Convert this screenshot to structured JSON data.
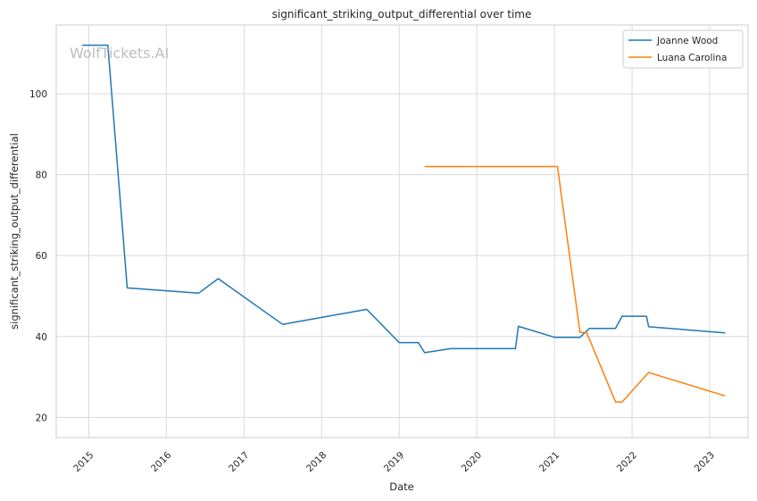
{
  "chart_data": {
    "type": "line",
    "title": "significant_striking_output_differential over time",
    "xlabel": "Date",
    "ylabel": "significant_striking_output_differential",
    "x_range": [
      "2014-08-01",
      "2023-07-01"
    ],
    "ylim": [
      15,
      117
    ],
    "x_ticks": [
      "2015",
      "2016",
      "2017",
      "2018",
      "2019",
      "2020",
      "2021",
      "2022",
      "2023"
    ],
    "y_ticks": [
      20,
      40,
      60,
      80,
      100
    ],
    "grid": true,
    "legend_position": "top-right",
    "watermark": "WolfTickets.AI",
    "series": [
      {
        "name": "Joanne Wood",
        "color": "#1f77b4",
        "points": [
          [
            "2014-12-01",
            112
          ],
          [
            "2015-04-01",
            112
          ],
          [
            "2015-07-01",
            52
          ],
          [
            "2016-06-01",
            50.7
          ],
          [
            "2016-09-01",
            54.3
          ],
          [
            "2017-07-01",
            43
          ],
          [
            "2018-08-01",
            46.7
          ],
          [
            "2019-01-01",
            38.5
          ],
          [
            "2019-04-01",
            38.5
          ],
          [
            "2019-05-01",
            36
          ],
          [
            "2019-09-01",
            37
          ],
          [
            "2020-07-01",
            37
          ],
          [
            "2020-07-15",
            42.5
          ],
          [
            "2021-01-01",
            39.8
          ],
          [
            "2021-05-01",
            39.8
          ],
          [
            "2021-06-15",
            42
          ],
          [
            "2021-10-15",
            42
          ],
          [
            "2021-11-15",
            45
          ],
          [
            "2022-03-10",
            45
          ],
          [
            "2022-03-20",
            42.4
          ],
          [
            "2023-03-15",
            40.9
          ]
        ]
      },
      {
        "name": "Luana Carolina",
        "color": "#ff7f0e",
        "points": [
          [
            "2019-05-01",
            82
          ],
          [
            "2021-01-15",
            82
          ],
          [
            "2021-05-01",
            41
          ],
          [
            "2021-06-01",
            41
          ],
          [
            "2021-10-15",
            23.8
          ],
          [
            "2021-11-15",
            23.8
          ],
          [
            "2022-03-20",
            31.1
          ],
          [
            "2023-03-15",
            25.3
          ]
        ]
      }
    ]
  }
}
